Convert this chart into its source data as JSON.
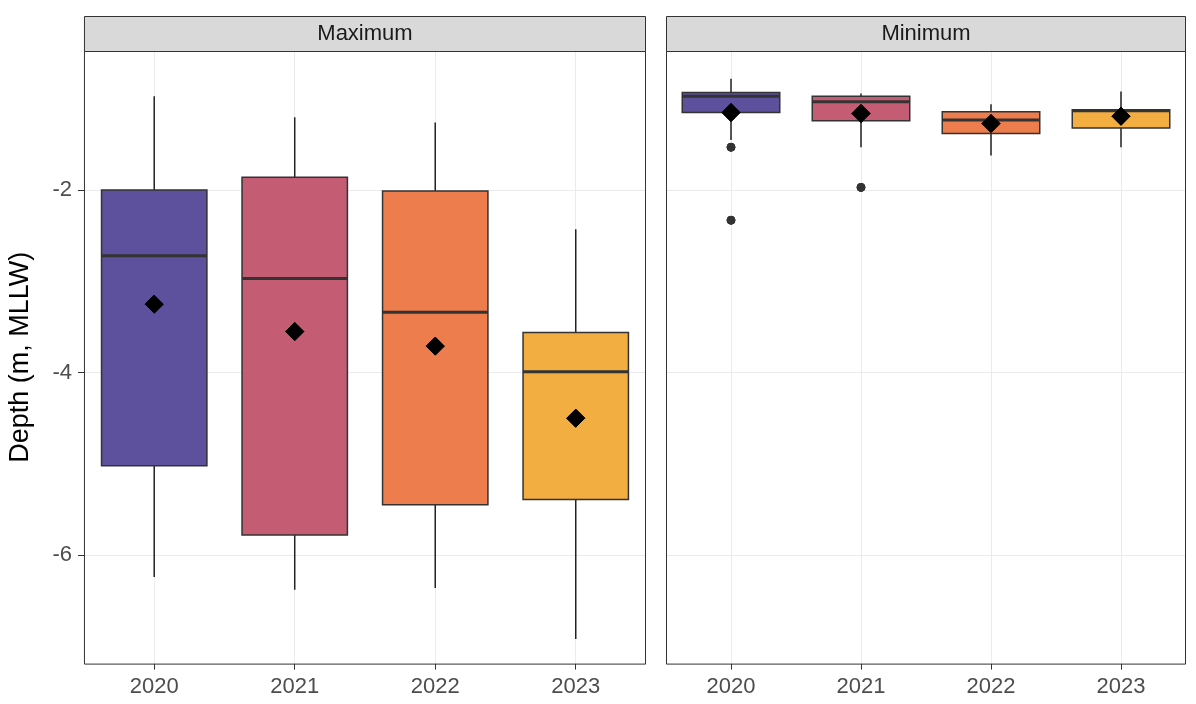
{
  "chart_data": [
    {
      "type": "box",
      "title": "Maximum",
      "ylabel": "Depth (m, MLLW)",
      "categories": [
        "2020",
        "2021",
        "2022",
        "2023"
      ],
      "colors": [
        "#5d519d",
        "#c45c73",
        "#ee7d4e",
        "#f3ae41"
      ],
      "boxes": [
        {
          "low": -6.24,
          "q1": -5.02,
          "median": -2.72,
          "q3": -2.0,
          "high": -0.97,
          "mean": -3.25
        },
        {
          "low": -6.38,
          "q1": -5.78,
          "median": -2.97,
          "q3": -1.86,
          "high": -1.2,
          "mean": -3.55
        },
        {
          "low": -6.36,
          "q1": -5.45,
          "median": -3.34,
          "q3": -2.01,
          "high": -1.26,
          "mean": -3.71
        },
        {
          "low": -6.92,
          "q1": -5.39,
          "median": -3.99,
          "q3": -3.56,
          "high": -2.43,
          "mean": -4.5
        }
      ],
      "ylim": [
        -7.19,
        -0.475
      ],
      "yticks": [
        -6,
        -4,
        -2
      ],
      "grid": true,
      "legend": false
    },
    {
      "type": "box",
      "title": "Minimum",
      "categories": [
        "2020",
        "2021",
        "2022",
        "2023"
      ],
      "colors": [
        "#5d519d",
        "#c45c73",
        "#ee7d4e",
        "#f3ae41"
      ],
      "boxes": [
        {
          "low": -1.45,
          "q1": -1.15,
          "median": -0.97,
          "q3": -0.93,
          "high": -0.78,
          "mean": -1.15,
          "outliers": [
            -1.53,
            -2.33
          ]
        },
        {
          "low": -1.53,
          "q1": -1.24,
          "median": -1.03,
          "q3": -0.97,
          "high": -0.94,
          "mean": -1.16,
          "outliers": [
            -1.97
          ]
        },
        {
          "low": -1.62,
          "q1": -1.38,
          "median": -1.23,
          "q3": -1.14,
          "high": -1.06,
          "mean": -1.27
        },
        {
          "low": -1.53,
          "q1": -1.32,
          "median": -1.13,
          "q3": -1.12,
          "high": -0.92,
          "mean": -1.19
        }
      ],
      "ylim": [
        -7.19,
        -0.475
      ],
      "yticks": [
        -6,
        -4,
        -2
      ],
      "grid": true,
      "legend": false,
      "tick_labels": "x"
    }
  ]
}
